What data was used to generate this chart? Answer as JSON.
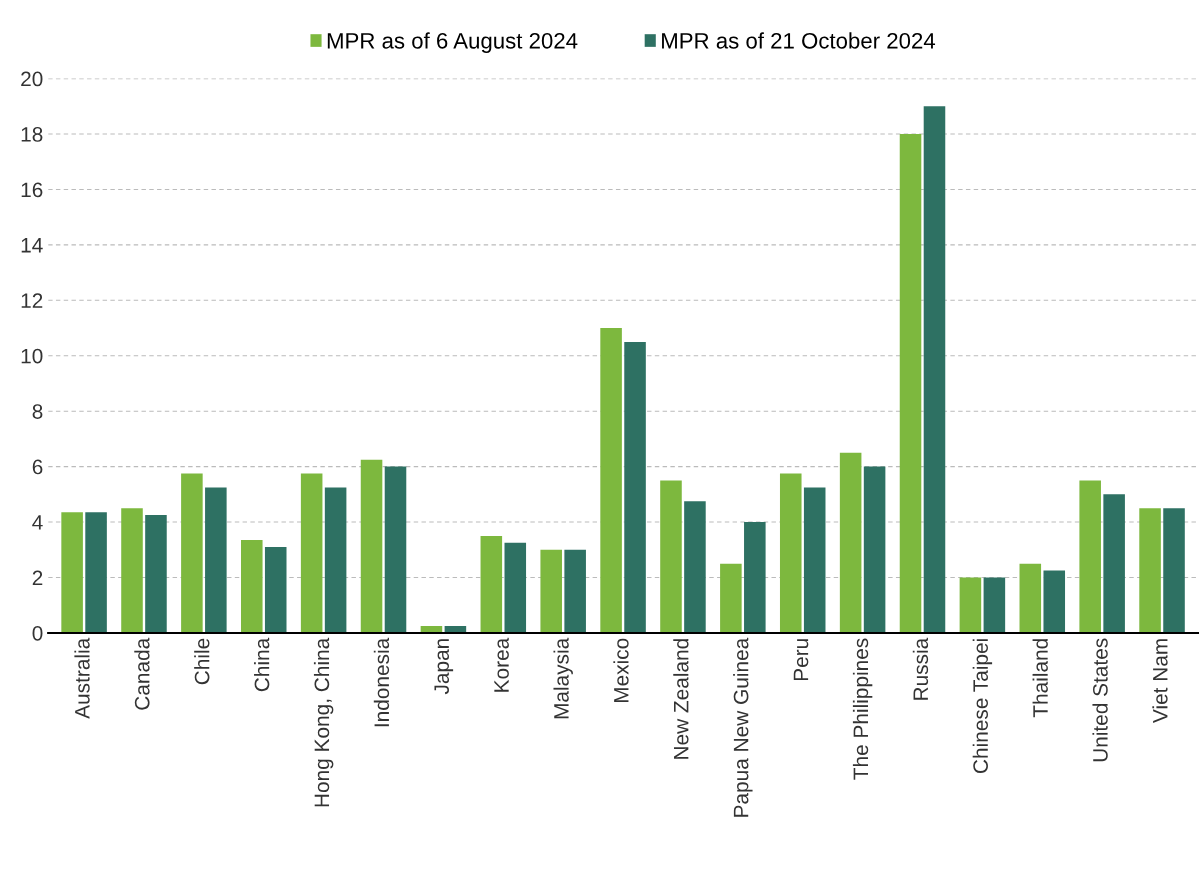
{
  "chart_data": {
    "type": "bar",
    "categories": [
      "Australia",
      "Canada",
      "Chile",
      "China",
      "Hong Kong, China",
      "Indonesia",
      "Japan",
      "Korea",
      "Malaysia",
      "Mexico",
      "New Zealand",
      "Papua New Guinea",
      "Peru",
      "The Philippines",
      "Russia",
      "Chinese Taipei",
      "Thailand",
      "United States",
      "Viet Nam"
    ],
    "series": [
      {
        "name": "MPR as of 6 August 2024",
        "color": "#7db83e",
        "values": [
          4.35,
          4.5,
          5.75,
          3.35,
          5.75,
          6.25,
          0.25,
          3.5,
          3.0,
          11.0,
          5.5,
          2.5,
          5.75,
          6.5,
          18.0,
          2.0,
          2.5,
          5.5,
          4.5
        ]
      },
      {
        "name": "MPR as of 21 October 2024",
        "color": "#2e7163",
        "values": [
          4.35,
          4.25,
          5.25,
          3.1,
          5.25,
          6.0,
          0.25,
          3.25,
          3.0,
          10.5,
          4.75,
          4.0,
          5.25,
          6.0,
          19.0,
          2.0,
          2.25,
          5.0,
          4.5
        ]
      }
    ],
    "ylim": [
      0,
      20
    ],
    "yticks": [
      0,
      2,
      4,
      6,
      8,
      10,
      12,
      14,
      16,
      18,
      20
    ],
    "grid": "y",
    "legend": "top"
  }
}
